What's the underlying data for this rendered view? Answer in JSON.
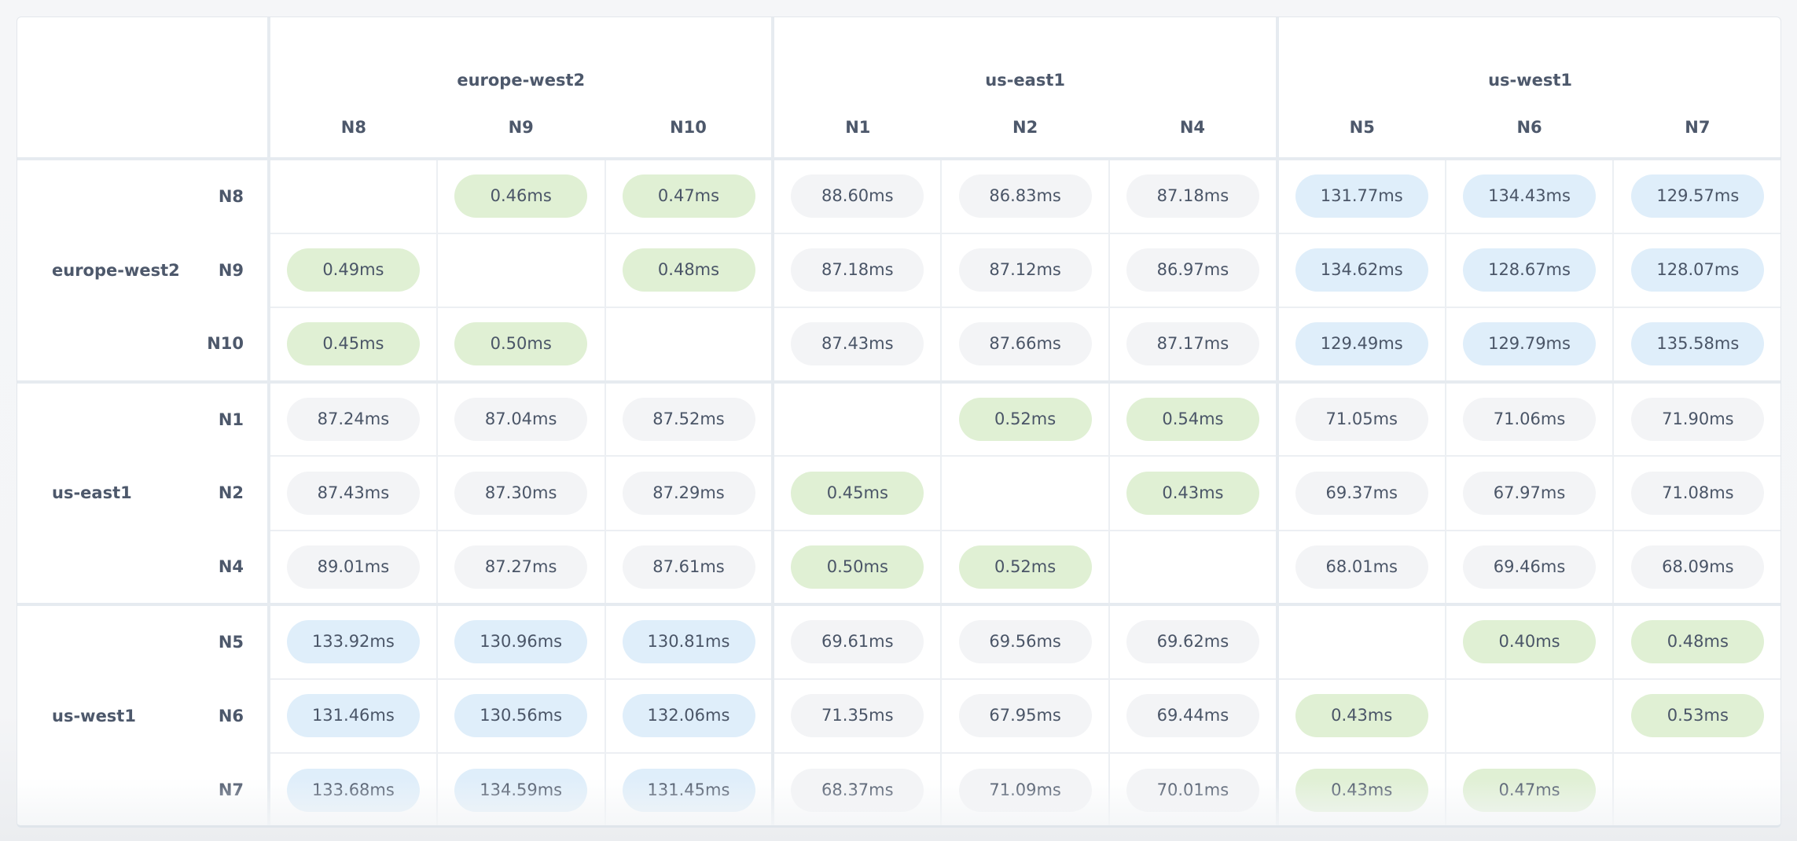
{
  "colors": {
    "local": "#e0f0d4",
    "near": "#f3f4f6",
    "far": "#dfeefa",
    "text": "#4a5567",
    "border": "#e6ebf0"
  },
  "columns": {
    "groups": [
      {
        "region": "europe-west2",
        "nodes": [
          "N8",
          "N9",
          "N10"
        ]
      },
      {
        "region": "us-east1",
        "nodes": [
          "N1",
          "N2",
          "N4"
        ]
      },
      {
        "region": "us-west1",
        "nodes": [
          "N5",
          "N6",
          "N7"
        ]
      }
    ]
  },
  "rows": {
    "groups": [
      {
        "region": "europe-west2",
        "nodes": [
          {
            "node": "N8",
            "cells": [
              "",
              "0.46ms",
              "0.47ms",
              "88.60ms",
              "86.83ms",
              "87.18ms",
              "131.77ms",
              "134.43ms",
              "129.57ms"
            ]
          },
          {
            "node": "N9",
            "cells": [
              "0.49ms",
              "",
              "0.48ms",
              "87.18ms",
              "87.12ms",
              "86.97ms",
              "134.62ms",
              "128.67ms",
              "128.07ms"
            ]
          },
          {
            "node": "N10",
            "cells": [
              "0.45ms",
              "0.50ms",
              "",
              "87.43ms",
              "87.66ms",
              "87.17ms",
              "129.49ms",
              "129.79ms",
              "135.58ms"
            ]
          }
        ]
      },
      {
        "region": "us-east1",
        "nodes": [
          {
            "node": "N1",
            "cells": [
              "87.24ms",
              "87.04ms",
              "87.52ms",
              "",
              "0.52ms",
              "0.54ms",
              "71.05ms",
              "71.06ms",
              "71.90ms"
            ]
          },
          {
            "node": "N2",
            "cells": [
              "87.43ms",
              "87.30ms",
              "87.29ms",
              "0.45ms",
              "",
              "0.43ms",
              "69.37ms",
              "67.97ms",
              "71.08ms"
            ]
          },
          {
            "node": "N4",
            "cells": [
              "89.01ms",
              "87.27ms",
              "87.61ms",
              "0.50ms",
              "0.52ms",
              "",
              "68.01ms",
              "69.46ms",
              "68.09ms"
            ]
          }
        ]
      },
      {
        "region": "us-west1",
        "nodes": [
          {
            "node": "N5",
            "cells": [
              "133.92ms",
              "130.96ms",
              "130.81ms",
              "69.61ms",
              "69.56ms",
              "69.62ms",
              "",
              "0.40ms",
              "0.48ms"
            ]
          },
          {
            "node": "N6",
            "cells": [
              "131.46ms",
              "130.56ms",
              "132.06ms",
              "71.35ms",
              "67.95ms",
              "69.44ms",
              "0.43ms",
              "",
              "0.53ms"
            ]
          },
          {
            "node": "N7",
            "cells": [
              "133.68ms",
              "134.59ms",
              "131.45ms",
              "68.37ms",
              "71.09ms",
              "70.01ms",
              "0.43ms",
              "0.47ms",
              ""
            ]
          }
        ]
      }
    ]
  }
}
